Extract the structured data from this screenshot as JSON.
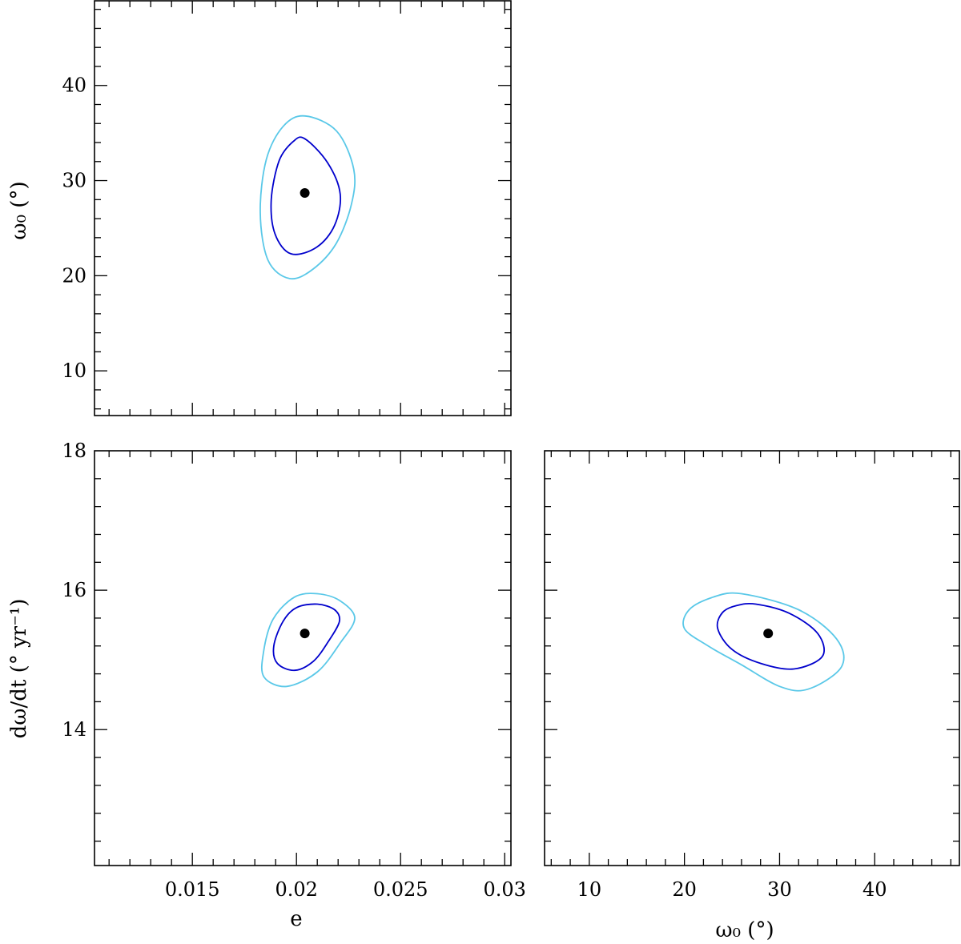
{
  "chart_data": [
    {
      "type": "scatter",
      "panel": "e_vs_omega0",
      "xlim": [
        0.0103,
        0.0303
      ],
      "ylim": [
        5.3,
        48.9
      ],
      "x_major_ticks": [
        0.015,
        0.02,
        0.025,
        0.03
      ],
      "y_major_ticks": [
        10,
        20,
        30,
        40
      ],
      "x_tick_labels": [],
      "y_tick_labels": [
        "10",
        "20",
        "30",
        "40"
      ],
      "xlabel": "",
      "ylabel": "ω₀ (°)",
      "best_fit": {
        "x": 0.0204,
        "y": 28.7
      },
      "contours": [
        {
          "level": "inner",
          "color": "#0000cc",
          "points": [
            [
              0.0204,
              34.4
            ],
            [
              0.02149,
              31.9
            ],
            [
              0.0221,
              28.6
            ],
            [
              0.02183,
              25.3
            ],
            [
              0.02097,
              23.0
            ],
            [
              0.01974,
              22.3
            ],
            [
              0.01897,
              24.4
            ],
            [
              0.01879,
              28.0
            ],
            [
              0.01917,
              32.1
            ],
            [
              0.01984,
              34.1
            ]
          ]
        },
        {
          "level": "outer",
          "color": "#5ac8e8",
          "points": [
            [
              0.0204,
              36.8
            ],
            [
              0.02193,
              35.2
            ],
            [
              0.02275,
              31.2
            ],
            [
              0.02264,
              27.5
            ],
            [
              0.02191,
              23.4
            ],
            [
              0.0208,
              20.7
            ],
            [
              0.01967,
              19.7
            ],
            [
              0.01864,
              21.6
            ],
            [
              0.01826,
              26.6
            ],
            [
              0.01855,
              32.2
            ],
            [
              0.01936,
              35.7
            ]
          ]
        }
      ]
    },
    {
      "type": "scatter",
      "panel": "e_vs_domega_dt",
      "xlim": [
        0.0103,
        0.0303
      ],
      "ylim": [
        12.05,
        18.0
      ],
      "x_major_ticks": [
        0.015,
        0.02,
        0.025,
        0.03
      ],
      "y_major_ticks": [
        14,
        16,
        18
      ],
      "x_tick_labels": [
        "0.015",
        "0.02",
        "0.025",
        "0.03"
      ],
      "y_tick_labels": [
        "14",
        "16",
        "18"
      ],
      "xlabel": "e",
      "ylabel": "dω/dt (° yr⁻¹)",
      "best_fit": {
        "x": 0.0204,
        "y": 15.38
      },
      "contours": [
        {
          "level": "inner",
          "color": "#0000cc",
          "points": [
            [
              0.021,
              15.8
            ],
            [
              0.02183,
              15.72
            ],
            [
              0.02206,
              15.55
            ],
            [
              0.0215,
              15.25
            ],
            [
              0.02081,
              14.98
            ],
            [
              0.01992,
              14.85
            ],
            [
              0.01908,
              14.95
            ],
            [
              0.01891,
              15.2
            ],
            [
              0.01935,
              15.55
            ],
            [
              0.02,
              15.75
            ]
          ]
        },
        {
          "level": "outer",
          "color": "#5ac8e8",
          "points": [
            [
              0.021,
              15.95
            ],
            [
              0.02209,
              15.85
            ],
            [
              0.0228,
              15.6
            ],
            [
              0.02212,
              15.25
            ],
            [
              0.02101,
              14.83
            ],
            [
              0.01954,
              14.62
            ],
            [
              0.01845,
              14.75
            ],
            [
              0.01841,
              15.1
            ],
            [
              0.01887,
              15.58
            ],
            [
              0.0199,
              15.9
            ]
          ]
        }
      ]
    },
    {
      "type": "scatter",
      "panel": "omega0_vs_domega_dt",
      "xlim": [
        5.3,
        48.9
      ],
      "ylim": [
        12.05,
        18.0
      ],
      "x_major_ticks": [
        10,
        20,
        30,
        40
      ],
      "y_major_ticks": [
        14,
        16,
        18
      ],
      "x_tick_labels": [
        "10",
        "20",
        "30",
        "40"
      ],
      "y_tick_labels": [],
      "xlabel": "ω₀ (°)",
      "ylabel": "",
      "best_fit": {
        "x": 28.8,
        "y": 15.38
      },
      "contours": [
        {
          "level": "inner",
          "color": "#0000cc",
          "points": [
            [
              27.5,
              15.8
            ],
            [
              31.0,
              15.67
            ],
            [
              34.0,
              15.38
            ],
            [
              34.5,
              15.05
            ],
            [
              31.5,
              14.87
            ],
            [
              28.0,
              14.95
            ],
            [
              25.0,
              15.15
            ],
            [
              23.5,
              15.45
            ],
            [
              24.0,
              15.68
            ],
            [
              25.5,
              15.78
            ]
          ]
        },
        {
          "level": "outer",
          "color": "#5ac8e8",
          "points": [
            [
              26.0,
              15.95
            ],
            [
              32.0,
              15.72
            ],
            [
              36.0,
              15.3
            ],
            [
              36.5,
              14.9
            ],
            [
              33.0,
              14.58
            ],
            [
              30.0,
              14.62
            ],
            [
              26.0,
              14.93
            ],
            [
              22.5,
              15.2
            ],
            [
              20.0,
              15.45
            ],
            [
              20.5,
              15.72
            ],
            [
              23.0,
              15.9
            ]
          ]
        }
      ]
    }
  ]
}
